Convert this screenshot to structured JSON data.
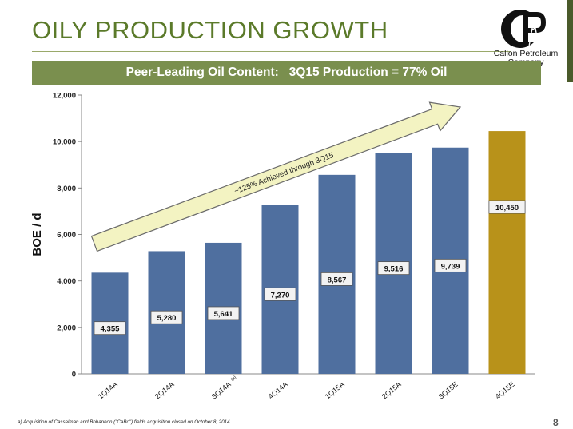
{
  "slide": {
    "title": "OILY PRODUCTION GROWTH",
    "banner": "Peer-Leading Oil Content:   3Q15 Production = 77% Oil",
    "logo_text_line1": "Callon Petroleum",
    "logo_text_line2": "Company",
    "footnote": "a)      Acquisition of Casselman and Bohannon (\"CaBo\") fields acquisition closed on October 8, 2014.",
    "page_number": "8",
    "colors": {
      "title_green": "#5b7a2a",
      "banner_green": "#7a8f4e",
      "bar_blue": "#4f6f9f",
      "bar_gold": "#b8921a",
      "arrow_fill": "#f3f3c2"
    }
  },
  "chart_data": {
    "type": "bar",
    "categories": [
      "1Q14A",
      "2Q14A",
      "3Q14A",
      "4Q14A",
      "1Q15A",
      "2Q15A",
      "3Q15E",
      "4Q15E"
    ],
    "category_superscripts": [
      "",
      "",
      "(a)",
      "",
      "",
      "",
      "",
      ""
    ],
    "values": [
      4355,
      5280,
      5641,
      7270,
      8567,
      9516,
      9739,
      10450
    ],
    "data_labels": [
      "4,355",
      "5,280",
      "5,641",
      "7,270",
      "8,567",
      "9,516",
      "9,739",
      "10,450"
    ],
    "highlight_index": 7,
    "ylabel": "BOE / d",
    "ylim": [
      0,
      12000
    ],
    "yticks": [
      0,
      2000,
      4000,
      6000,
      8000,
      10000,
      12000
    ],
    "ytick_labels": [
      "0",
      "2,000",
      "4,000",
      "6,000",
      "8,000",
      "10,000",
      "12,000"
    ],
    "grid": false,
    "annotation": "~125% Achieved through 3Q15"
  }
}
